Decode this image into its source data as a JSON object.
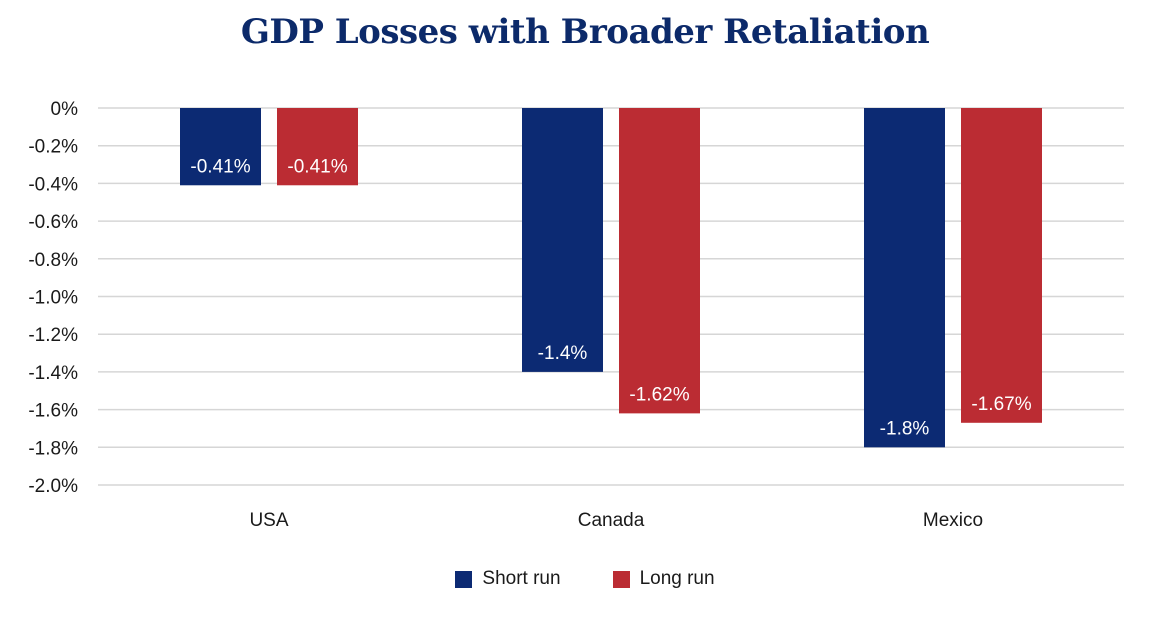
{
  "chart_data": {
    "type": "bar",
    "title": "GDP Losses with Broader Retaliation",
    "xlabel": "",
    "ylabel": "",
    "categories": [
      "USA",
      "Canada",
      "Mexico"
    ],
    "series": [
      {
        "name": "Short run",
        "color": "#0c2a73",
        "values": [
          -0.41,
          -1.4,
          -1.8
        ],
        "labels": [
          "-0.41%",
          "-1.4%",
          "-1.8%"
        ]
      },
      {
        "name": "Long run",
        "color": "#bb2c33",
        "values": [
          -0.41,
          -1.62,
          -1.67
        ],
        "labels": [
          "-0.41%",
          "-1.62%",
          "-1.67%"
        ]
      }
    ],
    "ylim": [
      -2.0,
      0
    ],
    "yticks": [
      0,
      -0.2,
      -0.4,
      -0.6,
      -0.8,
      -1.0,
      -1.2,
      -1.4,
      -1.6,
      -1.8,
      -2.0
    ],
    "ytick_labels": [
      "0%",
      "-0.2%",
      "-0.4%",
      "-0.6%",
      "-0.8%",
      "-1.0%",
      "-1.2%",
      "-1.4%",
      "-1.6%",
      "-1.8%",
      "-2.0%"
    ],
    "grid": true,
    "legend_position": "bottom-center"
  }
}
